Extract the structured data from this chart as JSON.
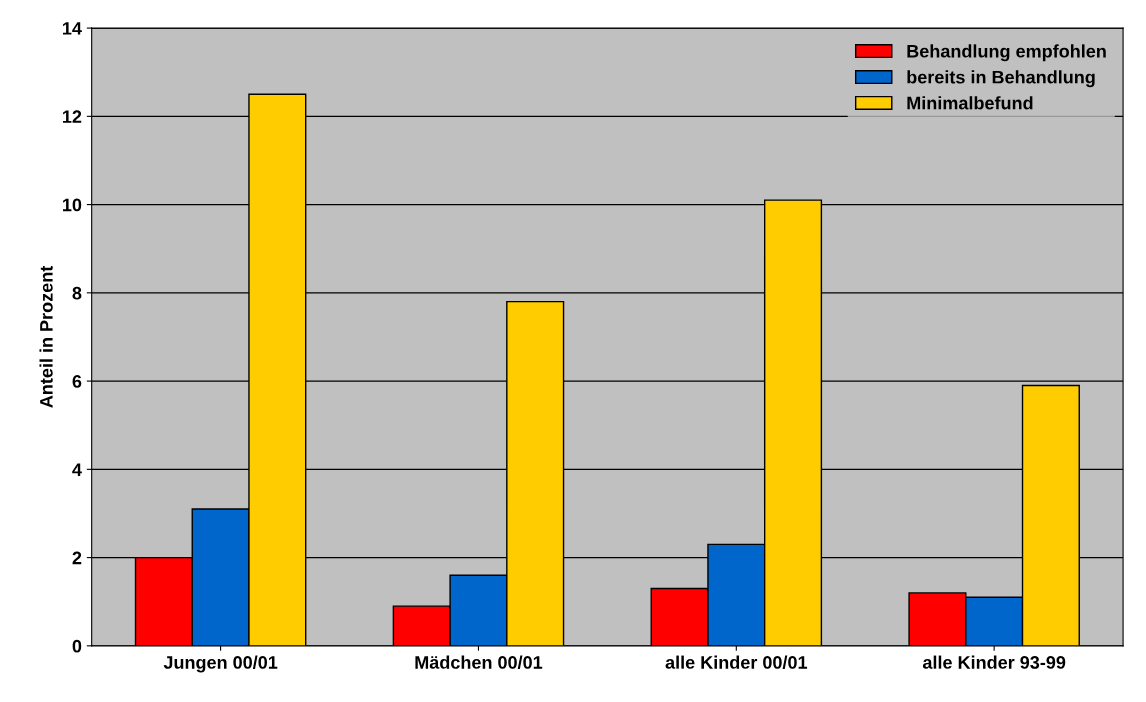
{
  "chart_data": {
    "type": "bar",
    "ylabel": "Anteil in Prozent",
    "categories": [
      "Jungen 00/01",
      "Mädchen 00/01",
      "alle Kinder 00/01",
      "alle Kinder 93-99"
    ],
    "series": [
      {
        "name": "Behandlung empfohlen",
        "color": "#ff0000",
        "values": [
          2.0,
          0.9,
          1.3,
          1.2
        ]
      },
      {
        "name": "bereits in Behandlung",
        "color": "#0066cc",
        "values": [
          3.1,
          1.6,
          2.3,
          1.1
        ]
      },
      {
        "name": "Minimalbefund",
        "color": "#ffcc00",
        "values": [
          12.5,
          7.8,
          10.1,
          5.9
        ]
      }
    ],
    "ylim": [
      0,
      14
    ],
    "yticks": [
      0,
      2,
      4,
      6,
      8,
      10,
      12,
      14
    ],
    "grid": "y",
    "legend": "top right"
  }
}
